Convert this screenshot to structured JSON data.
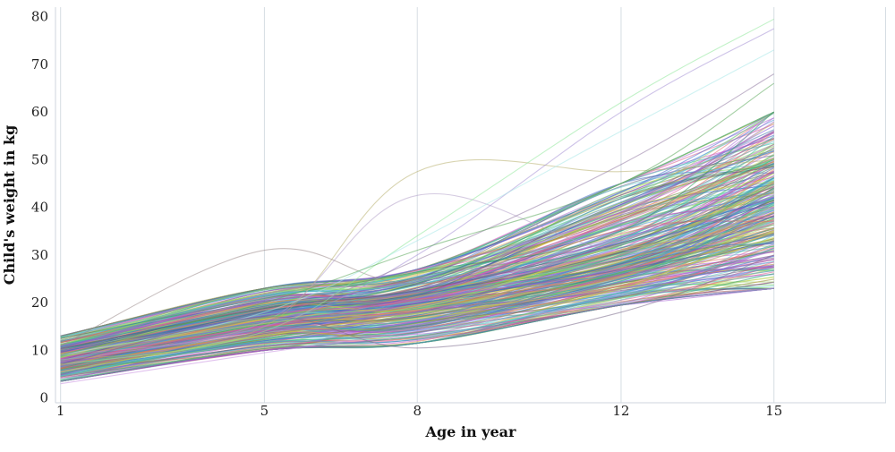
{
  "chart_data": {
    "type": "line",
    "xlabel": "Age in year",
    "ylabel": "Child's weight in kg",
    "x": [
      1,
      5,
      8,
      12,
      15
    ],
    "xticks": [
      "1",
      "5",
      "8",
      "12",
      "15"
    ],
    "xlim": [
      0.9,
      17.2
    ],
    "yticks": [
      "0",
      "10",
      "20",
      "30",
      "40",
      "50",
      "60",
      "70",
      "80"
    ],
    "ylim": [
      -1,
      82
    ],
    "grid": "vertical",
    "legend": "none",
    "bundle": {
      "count": 320,
      "median": [
        8,
        16,
        20,
        28.5,
        40
      ],
      "low": [
        3.5,
        10,
        11.5,
        19.5,
        23
      ],
      "high": [
        13,
        23,
        27,
        45,
        60
      ],
      "palette": [
        "#7b5bd6",
        "#4a8fd9",
        "#37b6a3",
        "#6dcc5a",
        "#c9d64a",
        "#e0a040",
        "#d85b8a",
        "#a86ad6",
        "#3f66c9",
        "#58c7c7",
        "#9fd36e",
        "#8a8f3c",
        "#c14fc9",
        "#2f9a5e",
        "#e36a6a",
        "#5a5a7a"
      ]
    },
    "series": [
      {
        "values": [
          8,
          15,
          47.5,
          47.5,
          50
        ],
        "color": "#b8b070"
      },
      {
        "values": [
          9,
          16,
          42.5,
          31,
          40
        ],
        "color": "#b3a0c8"
      },
      {
        "values": [
          11,
          31,
          24,
          33,
          45
        ],
        "color": "#9a8a8a"
      },
      {
        "values": [
          7,
          14,
          34,
          62,
          79.5
        ],
        "color": "#8fe89a"
      },
      {
        "values": [
          8,
          15,
          30,
          60,
          77.5
        ],
        "color": "#a591d6"
      },
      {
        "values": [
          9,
          18,
          33,
          56,
          73
        ],
        "color": "#a8e8e8"
      },
      {
        "values": [
          10,
          17,
          29,
          49,
          68
        ],
        "color": "#8f78a0"
      },
      {
        "values": [
          9,
          20,
          31,
          45,
          66
        ],
        "color": "#5aa85a"
      },
      {
        "values": [
          7,
          17,
          10.5,
          18,
          30
        ],
        "color": "#7a6a8a"
      },
      {
        "values": [
          3,
          9.5,
          14,
          20,
          23
        ],
        "color": "#c890e0"
      }
    ]
  }
}
